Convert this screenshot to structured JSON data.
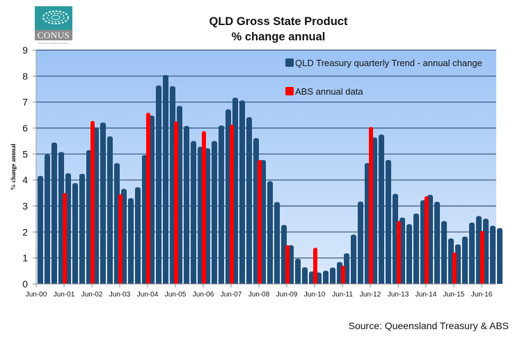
{
  "logo": {
    "name": "CONUS",
    "tagline": "Business Consultancy Services"
  },
  "chart_data": {
    "type": "bar",
    "title": "QLD Gross State Product",
    "subtitle": "% change annual",
    "xlabel": "",
    "ylabel": "% change annual",
    "ylim": [
      0,
      9
    ],
    "yticks": [
      0,
      1,
      2,
      3,
      4,
      5,
      6,
      7,
      8,
      9
    ],
    "grid": true,
    "legend_position": "top-right",
    "x_tick_labels": [
      "Jun-00",
      "Jun-01",
      "Jun-02",
      "Jun-03",
      "Jun-04",
      "Jun-05",
      "Jun-06",
      "Jun-07",
      "Jun-08",
      "Jun-09",
      "Jun-10",
      "Jun-11",
      "Jun-12",
      "Jun-13",
      "Jun-14",
      "Jun-15",
      "Jun-16"
    ],
    "series": [
      {
        "name": "QLD Treasury quarterly Trend - annual change",
        "color": "#1f4e79",
        "frequency": "quarterly",
        "start": "Jun-00",
        "values": [
          4.16,
          4.99,
          5.44,
          5.08,
          4.26,
          3.88,
          4.24,
          5.15,
          6.02,
          6.21,
          5.68,
          4.65,
          3.66,
          3.3,
          3.72,
          4.96,
          6.48,
          7.64,
          8.04,
          7.61,
          6.85,
          6.08,
          5.5,
          5.28,
          5.22,
          5.5,
          6.1,
          6.72,
          7.17,
          7.06,
          6.42,
          5.61,
          4.77,
          3.95,
          3.15,
          2.27,
          1.49,
          0.97,
          0.64,
          0.48,
          0.44,
          0.51,
          0.63,
          0.84,
          1.18,
          1.9,
          3.17,
          4.65,
          5.64,
          5.75,
          4.77,
          3.47,
          2.55,
          2.3,
          2.71,
          3.22,
          3.43,
          3.16,
          2.42,
          1.75,
          1.52,
          1.82,
          2.36,
          2.61,
          2.51,
          2.24,
          2.15
        ]
      },
      {
        "name": "ABS annual data",
        "color": "#ff0000",
        "frequency": "annual",
        "categories": [
          "Jun-01",
          "Jun-02",
          "Jun-03",
          "Jun-04",
          "Jun-05",
          "Jun-06",
          "Jun-07",
          "Jun-08",
          "Jun-09",
          "Jun-10",
          "Jun-11",
          "Jun-12",
          "Jun-13",
          "Jun-14",
          "Jun-15",
          "Jun-16"
        ],
        "values": [
          3.5,
          6.27,
          3.45,
          6.59,
          6.25,
          5.88,
          6.13,
          4.77,
          1.49,
          1.39,
          0.7,
          6.04,
          2.42,
          3.37,
          1.21,
          2.04
        ]
      }
    ]
  },
  "source": "Source: Queensland Treasury & ABS",
  "colors": {
    "plot_top": "#9cc3f5",
    "plot_bottom": "#dbe9fb",
    "gridline": "#2d4e78"
  }
}
